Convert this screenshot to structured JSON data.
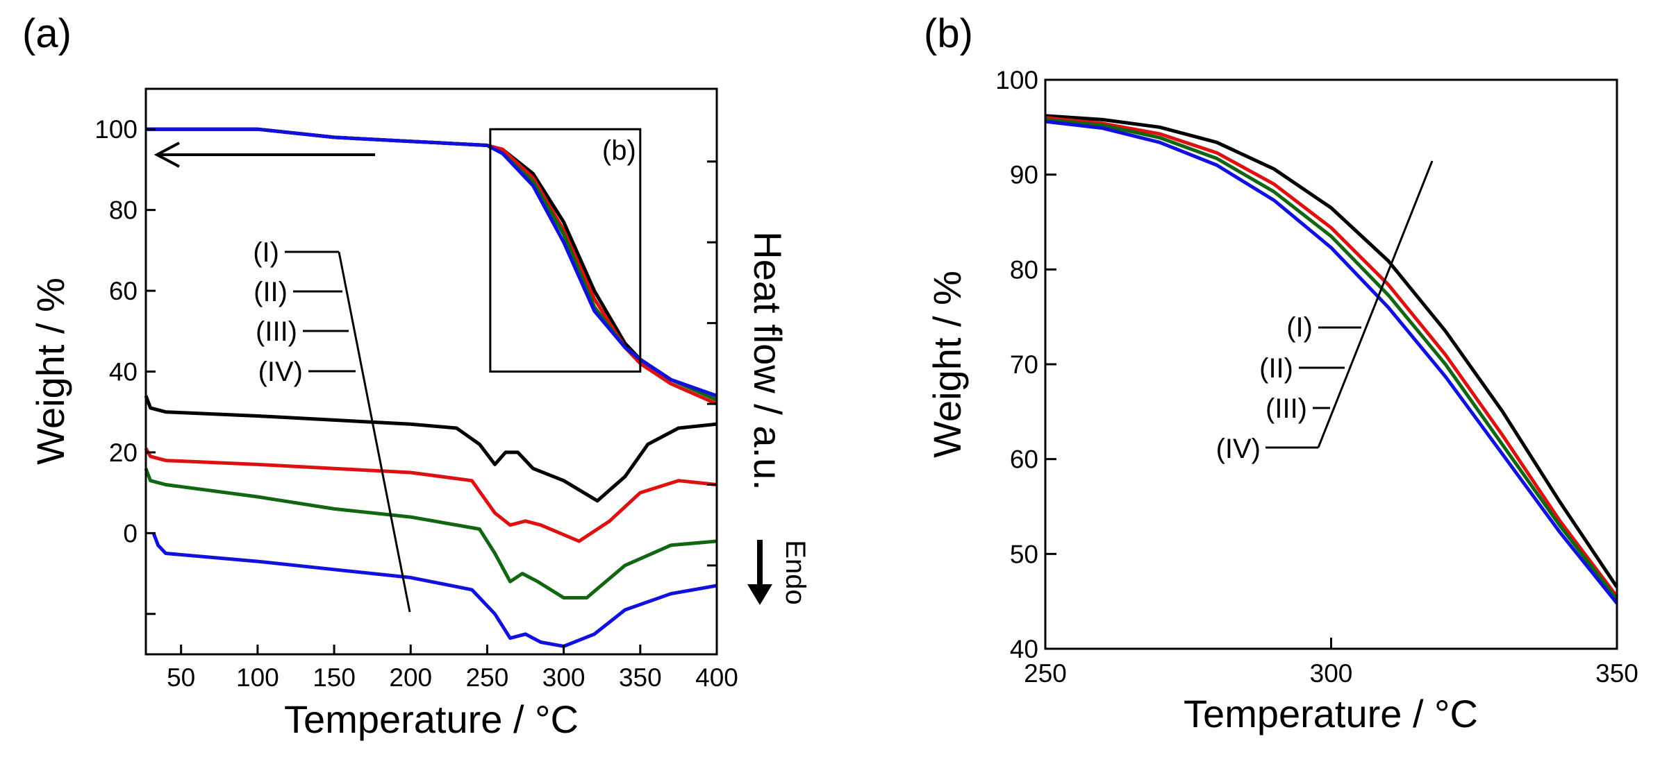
{
  "chart_data": [
    {
      "panel_label": "(a)",
      "type": "line",
      "title": "",
      "xlabel": "Temperature / °C",
      "ylabel": "Weight / %",
      "ylabel_right": "Heat flow / a.u.",
      "xlim": [
        27,
        400
      ],
      "ylim": [
        -30,
        110
      ],
      "xticks": [
        50,
        100,
        150,
        200,
        250,
        300,
        350,
        400
      ],
      "yticks": [
        0,
        20,
        40,
        60,
        80,
        100
      ],
      "grid": false,
      "arrow_label": "Endo",
      "inset_box_label": "(b)",
      "inset_box": {
        "x": [
          252,
          350
        ],
        "y": [
          40,
          100
        ]
      },
      "legend_labels": [
        "(I)",
        "(II)",
        "(III)",
        "(IV)"
      ],
      "colors": {
        "I": "#000000",
        "II": "#dd1111",
        "III": "#116611",
        "IV": "#1111dd"
      },
      "tga_series": [
        {
          "name": "(I)",
          "x": [
            27,
            100,
            150,
            200,
            250,
            260,
            280,
            300,
            320,
            340,
            350,
            370,
            400
          ],
          "y": [
            100,
            100,
            98,
            97,
            96,
            95,
            89,
            77,
            60,
            47,
            43,
            38,
            33
          ]
        },
        {
          "name": "(II)",
          "x": [
            27,
            100,
            150,
            200,
            250,
            260,
            280,
            300,
            320,
            340,
            350,
            370,
            400
          ],
          "y": [
            100,
            100,
            98,
            97,
            96,
            95,
            88,
            75,
            58,
            46,
            42,
            37,
            32
          ]
        },
        {
          "name": "(III)",
          "x": [
            27,
            100,
            150,
            200,
            250,
            260,
            280,
            300,
            320,
            340,
            350,
            370,
            400
          ],
          "y": [
            100,
            100,
            98,
            97,
            96,
            94,
            87,
            74,
            56,
            46,
            43,
            38,
            33
          ]
        },
        {
          "name": "(IV)",
          "x": [
            27,
            100,
            150,
            200,
            250,
            260,
            280,
            300,
            320,
            340,
            350,
            370,
            400
          ],
          "y": [
            100,
            100,
            98,
            97,
            96,
            94,
            86,
            72,
            55,
            46,
            43,
            38,
            34
          ]
        }
      ],
      "dsc_series": [
        {
          "name": "(I)",
          "x": [
            27,
            30,
            40,
            100,
            150,
            200,
            230,
            245,
            255,
            262,
            270,
            280,
            300,
            322,
            340,
            355,
            375,
            400
          ],
          "y": [
            34,
            31,
            30,
            29,
            28,
            27,
            26,
            22,
            17,
            20,
            20,
            16,
            13,
            8,
            14,
            22,
            26,
            27
          ]
        },
        {
          "name": "(II)",
          "x": [
            27,
            30,
            40,
            100,
            150,
            200,
            240,
            255,
            265,
            275,
            285,
            310,
            330,
            350,
            375,
            400
          ],
          "y": [
            21,
            19,
            18,
            17,
            16,
            15,
            13,
            5,
            2,
            3,
            2,
            -2,
            3,
            10,
            13,
            12
          ]
        },
        {
          "name": "(III)",
          "x": [
            27,
            30,
            40,
            100,
            150,
            200,
            245,
            255,
            265,
            273,
            283,
            300,
            315,
            340,
            370,
            400
          ],
          "y": [
            16,
            13,
            12,
            9,
            6,
            4,
            1,
            -5,
            -12,
            -10,
            -12,
            -16,
            -16,
            -8,
            -3,
            -2
          ]
        },
        {
          "name": "(IV)",
          "x": [
            32,
            35,
            40,
            100,
            150,
            200,
            240,
            255,
            265,
            275,
            285,
            300,
            320,
            340,
            370,
            400
          ],
          "y": [
            0,
            -3,
            -5,
            -7,
            -9,
            -11,
            -14,
            -20,
            -26,
            -25,
            -27,
            -28,
            -25,
            -19,
            -15,
            -13
          ]
        }
      ]
    },
    {
      "panel_label": "(b)",
      "type": "line",
      "title": "",
      "xlabel": "Temperature / °C",
      "ylabel": "Weight / %",
      "xlim": [
        250,
        350
      ],
      "ylim": [
        40,
        100
      ],
      "xticks": [
        250,
        300,
        350
      ],
      "yticks": [
        40,
        50,
        60,
        70,
        80,
        90,
        100
      ],
      "grid": false,
      "legend_labels": [
        "(I)",
        "(II)",
        "(III)",
        "(IV)"
      ],
      "series": [
        {
          "name": "(I)",
          "x": [
            250,
            260,
            270,
            280,
            290,
            300,
            310,
            320,
            330,
            340,
            350
          ],
          "y": [
            96.2,
            95.8,
            95.0,
            93.4,
            90.6,
            86.5,
            80.9,
            73.5,
            65,
            55.5,
            46.5
          ]
        },
        {
          "name": "(II)",
          "x": [
            250,
            260,
            270,
            280,
            290,
            300,
            310,
            320,
            330,
            340,
            350
          ],
          "y": [
            96.0,
            95.4,
            94.3,
            92.3,
            89.0,
            84.4,
            78.4,
            71,
            62.5,
            53.5,
            45.5
          ]
        },
        {
          "name": "(III)",
          "x": [
            250,
            260,
            270,
            280,
            290,
            300,
            310,
            320,
            330,
            340,
            350
          ],
          "y": [
            95.8,
            95.2,
            93.9,
            91.7,
            88.2,
            83.5,
            77.3,
            70,
            61.5,
            53,
            45.2
          ]
        },
        {
          "name": "(IV)",
          "x": [
            250,
            260,
            270,
            280,
            290,
            300,
            310,
            320,
            330,
            340,
            350
          ],
          "y": [
            95.6,
            94.9,
            93.4,
            91.0,
            87.3,
            82.3,
            76,
            68.7,
            60.5,
            52.3,
            44.8
          ]
        }
      ]
    }
  ]
}
